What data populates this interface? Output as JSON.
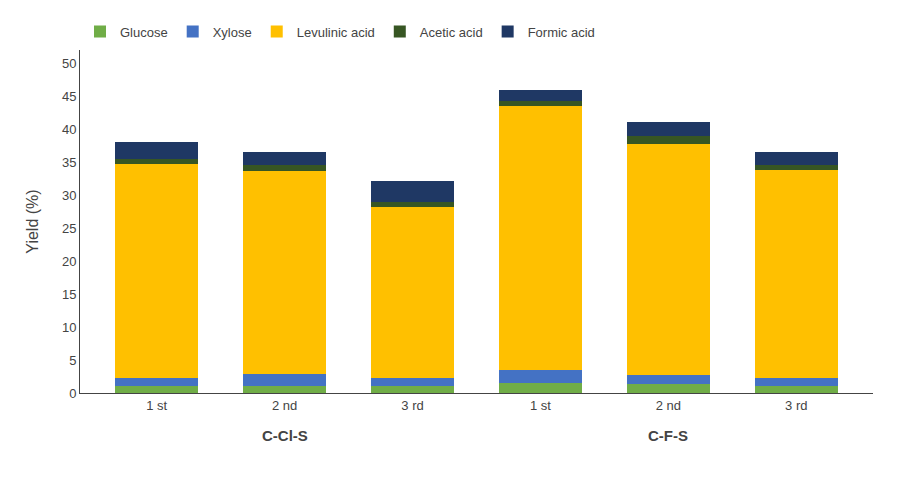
{
  "chart_data": {
    "type": "bar",
    "stacked": true,
    "ylabel": "Yield (%)",
    "categories": [
      "1 st",
      "2 nd",
      "3 rd",
      "1 st",
      "2 nd",
      "3 rd"
    ],
    "series": [
      {
        "name": "Glucose",
        "color": "#70AD47",
        "values": [
          1.0,
          1.1,
          1.0,
          1.5,
          1.4,
          1.0
        ]
      },
      {
        "name": "Xylose",
        "color": "#4472C4",
        "values": [
          1.2,
          1.8,
          1.2,
          2.0,
          1.4,
          1.3
        ]
      },
      {
        "name": "Levulinic acid",
        "color": "#FFC000",
        "values": [
          32.5,
          30.7,
          26.0,
          40.0,
          35.0,
          31.5
        ]
      },
      {
        "name": "Acetic acid",
        "color": "#375623",
        "values": [
          0.8,
          1.0,
          0.8,
          0.8,
          1.2,
          0.8
        ]
      },
      {
        "name": "Formic acid",
        "color": "#1F3864",
        "values": [
          2.5,
          2.0,
          3.2,
          1.7,
          2.1,
          1.9
        ]
      }
    ],
    "ylim": [
      0,
      52
    ],
    "yticks": [
      0,
      5,
      10,
      15,
      20,
      25,
      30,
      35,
      40,
      45,
      50
    ],
    "grid": false,
    "legend": "upper left",
    "annotations": [
      {
        "text": "C-Cl-S",
        "x": 1
      },
      {
        "text": "C-F-S",
        "x": 4
      }
    ]
  }
}
